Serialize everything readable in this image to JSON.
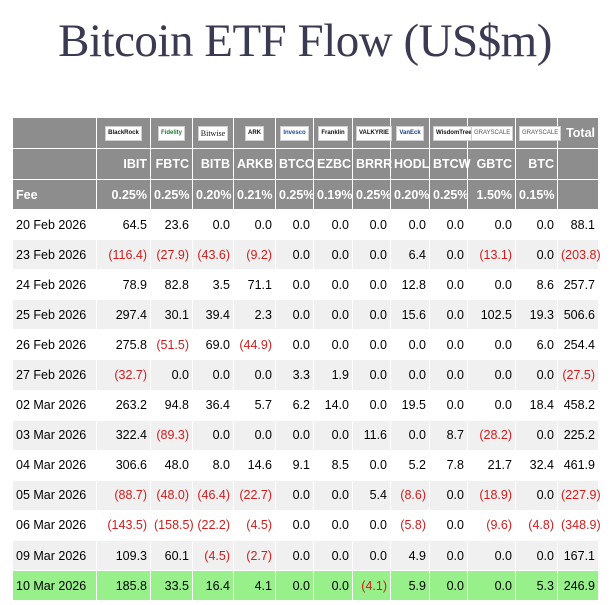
{
  "title": "Bitcoin ETF Flow (US$m)",
  "colors": {
    "header_bg": "#8d8d8d",
    "negative": "#d01c1c",
    "highlight": "#98f08a",
    "alt_row": "#f0f0f0"
  },
  "logos": [
    "BlackRock",
    "Fidelity",
    "Bitwise",
    "ARK",
    "Invesco",
    "Franklin",
    "VALKYRIE",
    "VanEck",
    "WisdomTree",
    "GRAYSCALE",
    "GRAYSCALE"
  ],
  "total_header": "Total",
  "tickers": [
    "IBIT",
    "FBTC",
    "BITB",
    "ARKB",
    "BTCO",
    "EZBC",
    "BRRR",
    "HODL",
    "BTCW",
    "GBTC",
    "BTC"
  ],
  "fee_label": "Fee",
  "fees": [
    "0.25%",
    "0.25%",
    "0.20%",
    "0.21%",
    "0.25%",
    "0.19%",
    "0.25%",
    "0.20%",
    "0.25%",
    "1.50%",
    "0.15%"
  ],
  "chart_data": {
    "type": "table",
    "title": "Bitcoin ETF Flow (US$m)",
    "columns": [
      "IBIT",
      "FBTC",
      "BITB",
      "ARKB",
      "BTCO",
      "EZBC",
      "BRRR",
      "HODL",
      "BTCW",
      "GBTC",
      "BTC",
      "Total"
    ],
    "rows": [
      {
        "date": "20 Feb 2026",
        "values": [
          "64.5",
          "23.6",
          "0.0",
          "0.0",
          "0.0",
          "0.0",
          "0.0",
          "0.0",
          "0.0",
          "0.0",
          "0.0",
          "88.1"
        ]
      },
      {
        "date": "23 Feb 2026",
        "values": [
          "(116.4)",
          "(27.9)",
          "(43.6)",
          "(9.2)",
          "0.0",
          "0.0",
          "0.0",
          "6.4",
          "0.0",
          "(13.1)",
          "0.0",
          "(203.8)"
        ]
      },
      {
        "date": "24 Feb 2026",
        "values": [
          "78.9",
          "82.8",
          "3.5",
          "71.1",
          "0.0",
          "0.0",
          "0.0",
          "12.8",
          "0.0",
          "0.0",
          "8.6",
          "257.7"
        ]
      },
      {
        "date": "25 Feb 2026",
        "values": [
          "297.4",
          "30.1",
          "39.4",
          "2.3",
          "0.0",
          "0.0",
          "0.0",
          "15.6",
          "0.0",
          "102.5",
          "19.3",
          "506.6"
        ]
      },
      {
        "date": "26 Feb 2026",
        "values": [
          "275.8",
          "(51.5)",
          "69.0",
          "(44.9)",
          "0.0",
          "0.0",
          "0.0",
          "0.0",
          "0.0",
          "0.0",
          "6.0",
          "254.4"
        ]
      },
      {
        "date": "27 Feb 2026",
        "values": [
          "(32.7)",
          "0.0",
          "0.0",
          "0.0",
          "3.3",
          "1.9",
          "0.0",
          "0.0",
          "0.0",
          "0.0",
          "0.0",
          "(27.5)"
        ]
      },
      {
        "date": "02 Mar 2026",
        "values": [
          "263.2",
          "94.8",
          "36.4",
          "5.7",
          "6.2",
          "14.0",
          "0.0",
          "19.5",
          "0.0",
          "0.0",
          "18.4",
          "458.2"
        ]
      },
      {
        "date": "03 Mar 2026",
        "values": [
          "322.4",
          "(89.3)",
          "0.0",
          "0.0",
          "0.0",
          "0.0",
          "11.6",
          "0.0",
          "8.7",
          "(28.2)",
          "0.0",
          "225.2"
        ]
      },
      {
        "date": "04 Mar 2026",
        "values": [
          "306.6",
          "48.0",
          "8.0",
          "14.6",
          "9.1",
          "8.5",
          "0.0",
          "5.2",
          "7.8",
          "21.7",
          "32.4",
          "461.9"
        ]
      },
      {
        "date": "05 Mar 2026",
        "values": [
          "(88.7)",
          "(48.0)",
          "(46.4)",
          "(22.7)",
          "0.0",
          "0.0",
          "5.4",
          "(8.6)",
          "0.0",
          "(18.9)",
          "0.0",
          "(227.9)"
        ]
      },
      {
        "date": "06 Mar 2026",
        "values": [
          "(143.5)",
          "(158.5)",
          "(22.2)",
          "(4.5)",
          "0.0",
          "0.0",
          "0.0",
          "(5.8)",
          "0.0",
          "(9.6)",
          "(4.8)",
          "(348.9)"
        ]
      },
      {
        "date": "09 Mar 2026",
        "values": [
          "109.3",
          "60.1",
          "(4.5)",
          "(2.7)",
          "0.0",
          "0.0",
          "0.0",
          "4.9",
          "0.0",
          "0.0",
          "0.0",
          "167.1"
        ]
      },
      {
        "date": "10 Mar 2026",
        "values": [
          "185.8",
          "33.5",
          "16.4",
          "4.1",
          "0.0",
          "0.0",
          "(4.1)",
          "5.9",
          "0.0",
          "0.0",
          "5.3",
          "246.9"
        ]
      }
    ]
  }
}
